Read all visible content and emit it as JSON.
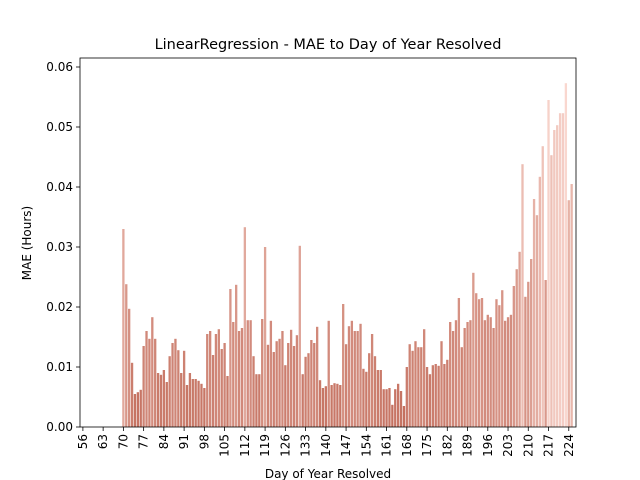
{
  "chart_data": {
    "type": "bar",
    "title": "LinearRegression - MAE to Day of Year Resolved",
    "xlabel": "Day of Year Resolved",
    "ylabel": "MAE (Hours)",
    "colors": [
      "#c4705f",
      "#f9d7cf"
    ],
    "x": [
      70,
      71,
      72,
      73,
      74,
      75,
      76,
      77,
      78,
      79,
      80,
      81,
      82,
      83,
      84,
      85,
      86,
      87,
      88,
      89,
      90,
      91,
      92,
      93,
      94,
      95,
      96,
      97,
      98,
      99,
      100,
      101,
      102,
      103,
      104,
      105,
      106,
      107,
      108,
      109,
      110,
      111,
      112,
      113,
      114,
      115,
      116,
      117,
      118,
      119,
      120,
      121,
      122,
      123,
      124,
      125,
      126,
      127,
      128,
      129,
      130,
      131,
      132,
      133,
      134,
      135,
      136,
      137,
      138,
      139,
      140,
      141,
      142,
      143,
      144,
      145,
      146,
      147,
      148,
      149,
      150,
      151,
      152,
      153,
      154,
      155,
      156,
      157,
      158,
      159,
      160,
      161,
      162,
      163,
      164,
      165,
      166,
      167,
      168,
      169,
      170,
      171,
      172,
      173,
      174,
      175,
      176,
      177,
      178,
      179,
      180,
      181,
      182,
      183,
      184,
      185,
      186,
      187,
      188,
      189,
      190,
      191,
      192,
      193,
      194,
      195,
      196,
      197,
      198,
      199,
      200,
      201,
      202,
      203,
      204,
      205,
      206,
      207,
      208,
      209,
      210,
      211,
      212,
      213,
      214,
      215,
      216,
      217,
      218,
      219,
      220,
      221,
      222,
      223,
      224,
      225
    ],
    "values": [
      0.033,
      0.0238,
      0.0197,
      0.0107,
      0.0055,
      0.0058,
      0.0062,
      0.0135,
      0.016,
      0.0147,
      0.0183,
      0.0147,
      0.009,
      0.0087,
      0.0095,
      0.0075,
      0.0118,
      0.014,
      0.0147,
      0.0128,
      0.009,
      0.0127,
      0.007,
      0.009,
      0.008,
      0.008,
      0.0077,
      0.0072,
      0.0065,
      0.0155,
      0.016,
      0.012,
      0.0155,
      0.0163,
      0.013,
      0.014,
      0.0085,
      0.023,
      0.0175,
      0.0237,
      0.016,
      0.0165,
      0.0333,
      0.0178,
      0.0178,
      0.0118,
      0.0088,
      0.0088,
      0.018,
      0.03,
      0.0137,
      0.0177,
      0.0125,
      0.0143,
      0.0147,
      0.016,
      0.0103,
      0.014,
      0.0162,
      0.0135,
      0.0153,
      0.0302,
      0.0088,
      0.0117,
      0.0123,
      0.0145,
      0.014,
      0.0167,
      0.0078,
      0.0065,
      0.0068,
      0.0177,
      0.007,
      0.0073,
      0.0072,
      0.007,
      0.0205,
      0.0138,
      0.0168,
      0.0177,
      0.016,
      0.016,
      0.0172,
      0.0097,
      0.0092,
      0.0123,
      0.0155,
      0.0118,
      0.0095,
      0.0095,
      0.0063,
      0.0063,
      0.0065,
      0.0037,
      0.0063,
      0.0072,
      0.006,
      0.0035,
      0.01,
      0.0138,
      0.0127,
      0.0143,
      0.0133,
      0.0133,
      0.0163,
      0.01,
      0.0088,
      0.0103,
      0.0105,
      0.0102,
      0.0143,
      0.0105,
      0.0112,
      0.0175,
      0.016,
      0.0178,
      0.0215,
      0.0133,
      0.0165,
      0.0175,
      0.0178,
      0.0257,
      0.0223,
      0.0213,
      0.0215,
      0.0178,
      0.0187,
      0.0183,
      0.0165,
      0.0213,
      0.0203,
      0.0228,
      0.0177,
      0.0183,
      0.0187,
      0.0235,
      0.0263,
      0.0292,
      0.0438,
      0.0217,
      0.0242,
      0.028,
      0.038,
      0.0353,
      0.0417,
      0.0468,
      0.0245,
      0.0545,
      0.0453,
      0.0495,
      0.0503,
      0.0523,
      0.0523,
      0.0573,
      0.0378,
      0.0405
    ],
    "xlim": [
      55,
      226.5
    ],
    "xticks": [
      56,
      63,
      70,
      77,
      84,
      91,
      98,
      105,
      112,
      119,
      126,
      133,
      140,
      147,
      154,
      161,
      168,
      175,
      182,
      189,
      196,
      203,
      210,
      217,
      224
    ],
    "ylim": [
      0,
      0.0615
    ],
    "yticks": [
      {
        "value": 0,
        "label": "0.00"
      },
      0.01,
      0.02,
      0.03,
      0.04,
      0.05,
      0.06
    ],
    "grid": false
  }
}
